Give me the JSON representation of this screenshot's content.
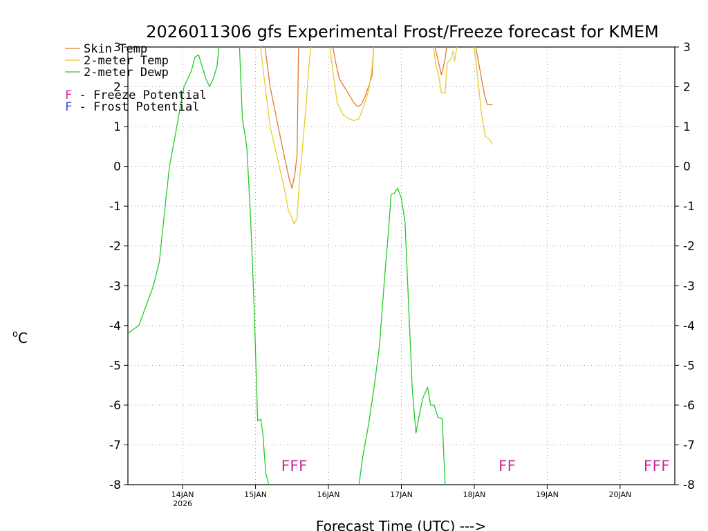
{
  "chart_data": {
    "type": "line",
    "title": "2026011306 gfs Experimental Frost/Freeze forecast for KMEM",
    "xlabel": "Forecast Time (UTC) --->",
    "ylabel_prefix": "o",
    "ylabel": "C",
    "ylim": [
      -8,
      3
    ],
    "y_ticks": [
      -8,
      -7,
      -6,
      -5,
      -4,
      -3,
      -2,
      -1,
      0,
      1,
      2,
      3
    ],
    "x_range_days": [
      -0.75,
      6.75
    ],
    "x_ticks": [
      {
        "day": 0,
        "label": "14JAN",
        "sub": "2026"
      },
      {
        "day": 1,
        "label": "15JAN",
        "sub": ""
      },
      {
        "day": 2,
        "label": "16JAN",
        "sub": ""
      },
      {
        "day": 3,
        "label": "17JAN",
        "sub": ""
      },
      {
        "day": 4,
        "label": "18JAN",
        "sub": ""
      },
      {
        "day": 5,
        "label": "19JAN",
        "sub": ""
      },
      {
        "day": 6,
        "label": "20JAN",
        "sub": ""
      }
    ],
    "grid": true,
    "series": [
      {
        "name": "Skin Temp",
        "color": "#e07a2e",
        "segments": [
          [
            [
              1.13,
              3
            ],
            [
              1.2,
              2.0
            ],
            [
              1.3,
              1.1
            ],
            [
              1.4,
              0.2
            ],
            [
              1.46,
              -0.3
            ],
            [
              1.5,
              -0.55
            ],
            [
              1.54,
              -0.2
            ],
            [
              1.57,
              0.3
            ],
            [
              1.59,
              3
            ]
          ],
          [
            [
              2.06,
              3
            ],
            [
              2.1,
              2.6
            ],
            [
              2.15,
              2.2
            ],
            [
              2.25,
              1.9
            ],
            [
              2.35,
              1.6
            ],
            [
              2.4,
              1.5
            ],
            [
              2.45,
              1.55
            ],
            [
              2.5,
              1.75
            ],
            [
              2.55,
              2.0
            ],
            [
              2.6,
              2.3
            ],
            [
              2.62,
              3
            ]
          ],
          [
            [
              3.46,
              3
            ],
            [
              3.5,
              2.7
            ],
            [
              3.55,
              2.3
            ],
            [
              3.6,
              2.7
            ],
            [
              3.62,
              3
            ]
          ],
          [
            [
              4.02,
              3
            ],
            [
              4.08,
              2.4
            ],
            [
              4.14,
              1.8
            ],
            [
              4.18,
              1.55
            ],
            [
              4.25,
              1.55
            ]
          ]
        ]
      },
      {
        "name": "2-meter Temp",
        "color": "#e8cc2a",
        "segments": [
          [
            [
              1.07,
              3
            ],
            [
              1.12,
              2.2
            ],
            [
              1.2,
              1.0
            ],
            [
              1.3,
              0.2
            ],
            [
              1.4,
              -0.6
            ],
            [
              1.45,
              -1.1
            ],
            [
              1.5,
              -1.3
            ],
            [
              1.53,
              -1.45
            ],
            [
              1.57,
              -1.3
            ],
            [
              1.6,
              -0.4
            ],
            [
              1.65,
              0.6
            ],
            [
              1.7,
              1.7
            ],
            [
              1.74,
              2.7
            ],
            [
              1.76,
              3
            ]
          ],
          [
            [
              2.02,
              3
            ],
            [
              2.06,
              2.4
            ],
            [
              2.12,
              1.6
            ],
            [
              2.2,
              1.3
            ],
            [
              2.28,
              1.2
            ],
            [
              2.35,
              1.15
            ],
            [
              2.42,
              1.2
            ],
            [
              2.48,
              1.5
            ],
            [
              2.55,
              1.9
            ],
            [
              2.6,
              2.5
            ],
            [
              2.62,
              3
            ]
          ],
          [
            [
              3.44,
              3
            ],
            [
              3.47,
              2.6
            ],
            [
              3.52,
              2.2
            ],
            [
              3.55,
              1.85
            ],
            [
              3.6,
              1.85
            ],
            [
              3.63,
              2.6
            ],
            [
              3.68,
              2.7
            ],
            [
              3.71,
              2.9
            ],
            [
              3.73,
              2.65
            ],
            [
              3.76,
              3
            ]
          ],
          [
            [
              4.0,
              3
            ],
            [
              4.05,
              2.2
            ],
            [
              4.1,
              1.3
            ],
            [
              4.15,
              0.75
            ],
            [
              4.2,
              0.7
            ],
            [
              4.25,
              0.55
            ]
          ]
        ]
      },
      {
        "name": "2-meter Dewp",
        "color": "#22cc22",
        "segments": [
          [
            [
              -0.75,
              -4.2
            ],
            [
              -0.68,
              -4.1
            ],
            [
              -0.6,
              -4.0
            ],
            [
              -0.5,
              -3.5
            ],
            [
              -0.4,
              -3.0
            ],
            [
              -0.32,
              -2.4
            ],
            [
              -0.25,
              -1.2
            ],
            [
              -0.18,
              0.0
            ],
            [
              -0.1,
              0.8
            ],
            [
              -0.03,
              1.5
            ],
            [
              0.02,
              2.0
            ],
            [
              0.07,
              2.2
            ],
            [
              0.12,
              2.4
            ],
            [
              0.17,
              2.75
            ],
            [
              0.22,
              2.8
            ],
            [
              0.27,
              2.5
            ],
            [
              0.32,
              2.2
            ],
            [
              0.37,
              2.0
            ],
            [
              0.42,
              2.2
            ],
            [
              0.47,
              2.5
            ],
            [
              0.5,
              3
            ]
          ],
          [
            [
              0.78,
              3
            ],
            [
              0.82,
              1.2
            ],
            [
              0.88,
              0.5
            ],
            [
              0.93,
              -1.2
            ],
            [
              0.98,
              -3.5
            ],
            [
              1.03,
              -6.4
            ],
            [
              1.07,
              -6.35
            ],
            [
              1.1,
              -6.7
            ],
            [
              1.14,
              -7.7
            ],
            [
              1.18,
              -8
            ]
          ],
          [
            [
              2.42,
              -8
            ],
            [
              2.47,
              -7.3
            ],
            [
              2.55,
              -6.5
            ],
            [
              2.63,
              -5.5
            ],
            [
              2.7,
              -4.5
            ],
            [
              2.77,
              -2.8
            ],
            [
              2.82,
              -1.7
            ],
            [
              2.86,
              -0.7
            ],
            [
              2.9,
              -0.68
            ],
            [
              2.95,
              -0.55
            ],
            [
              3.0,
              -0.8
            ],
            [
              3.05,
              -1.4
            ],
            [
              3.1,
              -3.5
            ],
            [
              3.15,
              -5.6
            ],
            [
              3.2,
              -6.7
            ],
            [
              3.25,
              -6.2
            ],
            [
              3.3,
              -5.8
            ],
            [
              3.36,
              -5.55
            ],
            [
              3.4,
              -6.0
            ],
            [
              3.45,
              -6.0
            ],
            [
              3.5,
              -6.3
            ],
            [
              3.56,
              -6.35
            ],
            [
              3.6,
              -8
            ]
          ]
        ]
      }
    ],
    "legend": {
      "placement": "top-left",
      "entries": [
        {
          "label": "Skin Temp",
          "color": "#e07a2e"
        },
        {
          "label": "2-meter Temp",
          "color": "#e8cc2a"
        },
        {
          "label": "2-meter Dewp",
          "color": "#22cc22"
        }
      ],
      "potentials": [
        {
          "letter": "F",
          "text": " - Freeze Potential",
          "color": "#cc2299"
        },
        {
          "letter": "F",
          "text": " - Frost Potential",
          "color": "#3344dd"
        }
      ]
    },
    "freeze_markers": [
      {
        "day": 1.53,
        "text": "FFF"
      },
      {
        "day": 4.45,
        "text": "FF"
      },
      {
        "day": 6.5,
        "text": "FFF"
      }
    ]
  }
}
